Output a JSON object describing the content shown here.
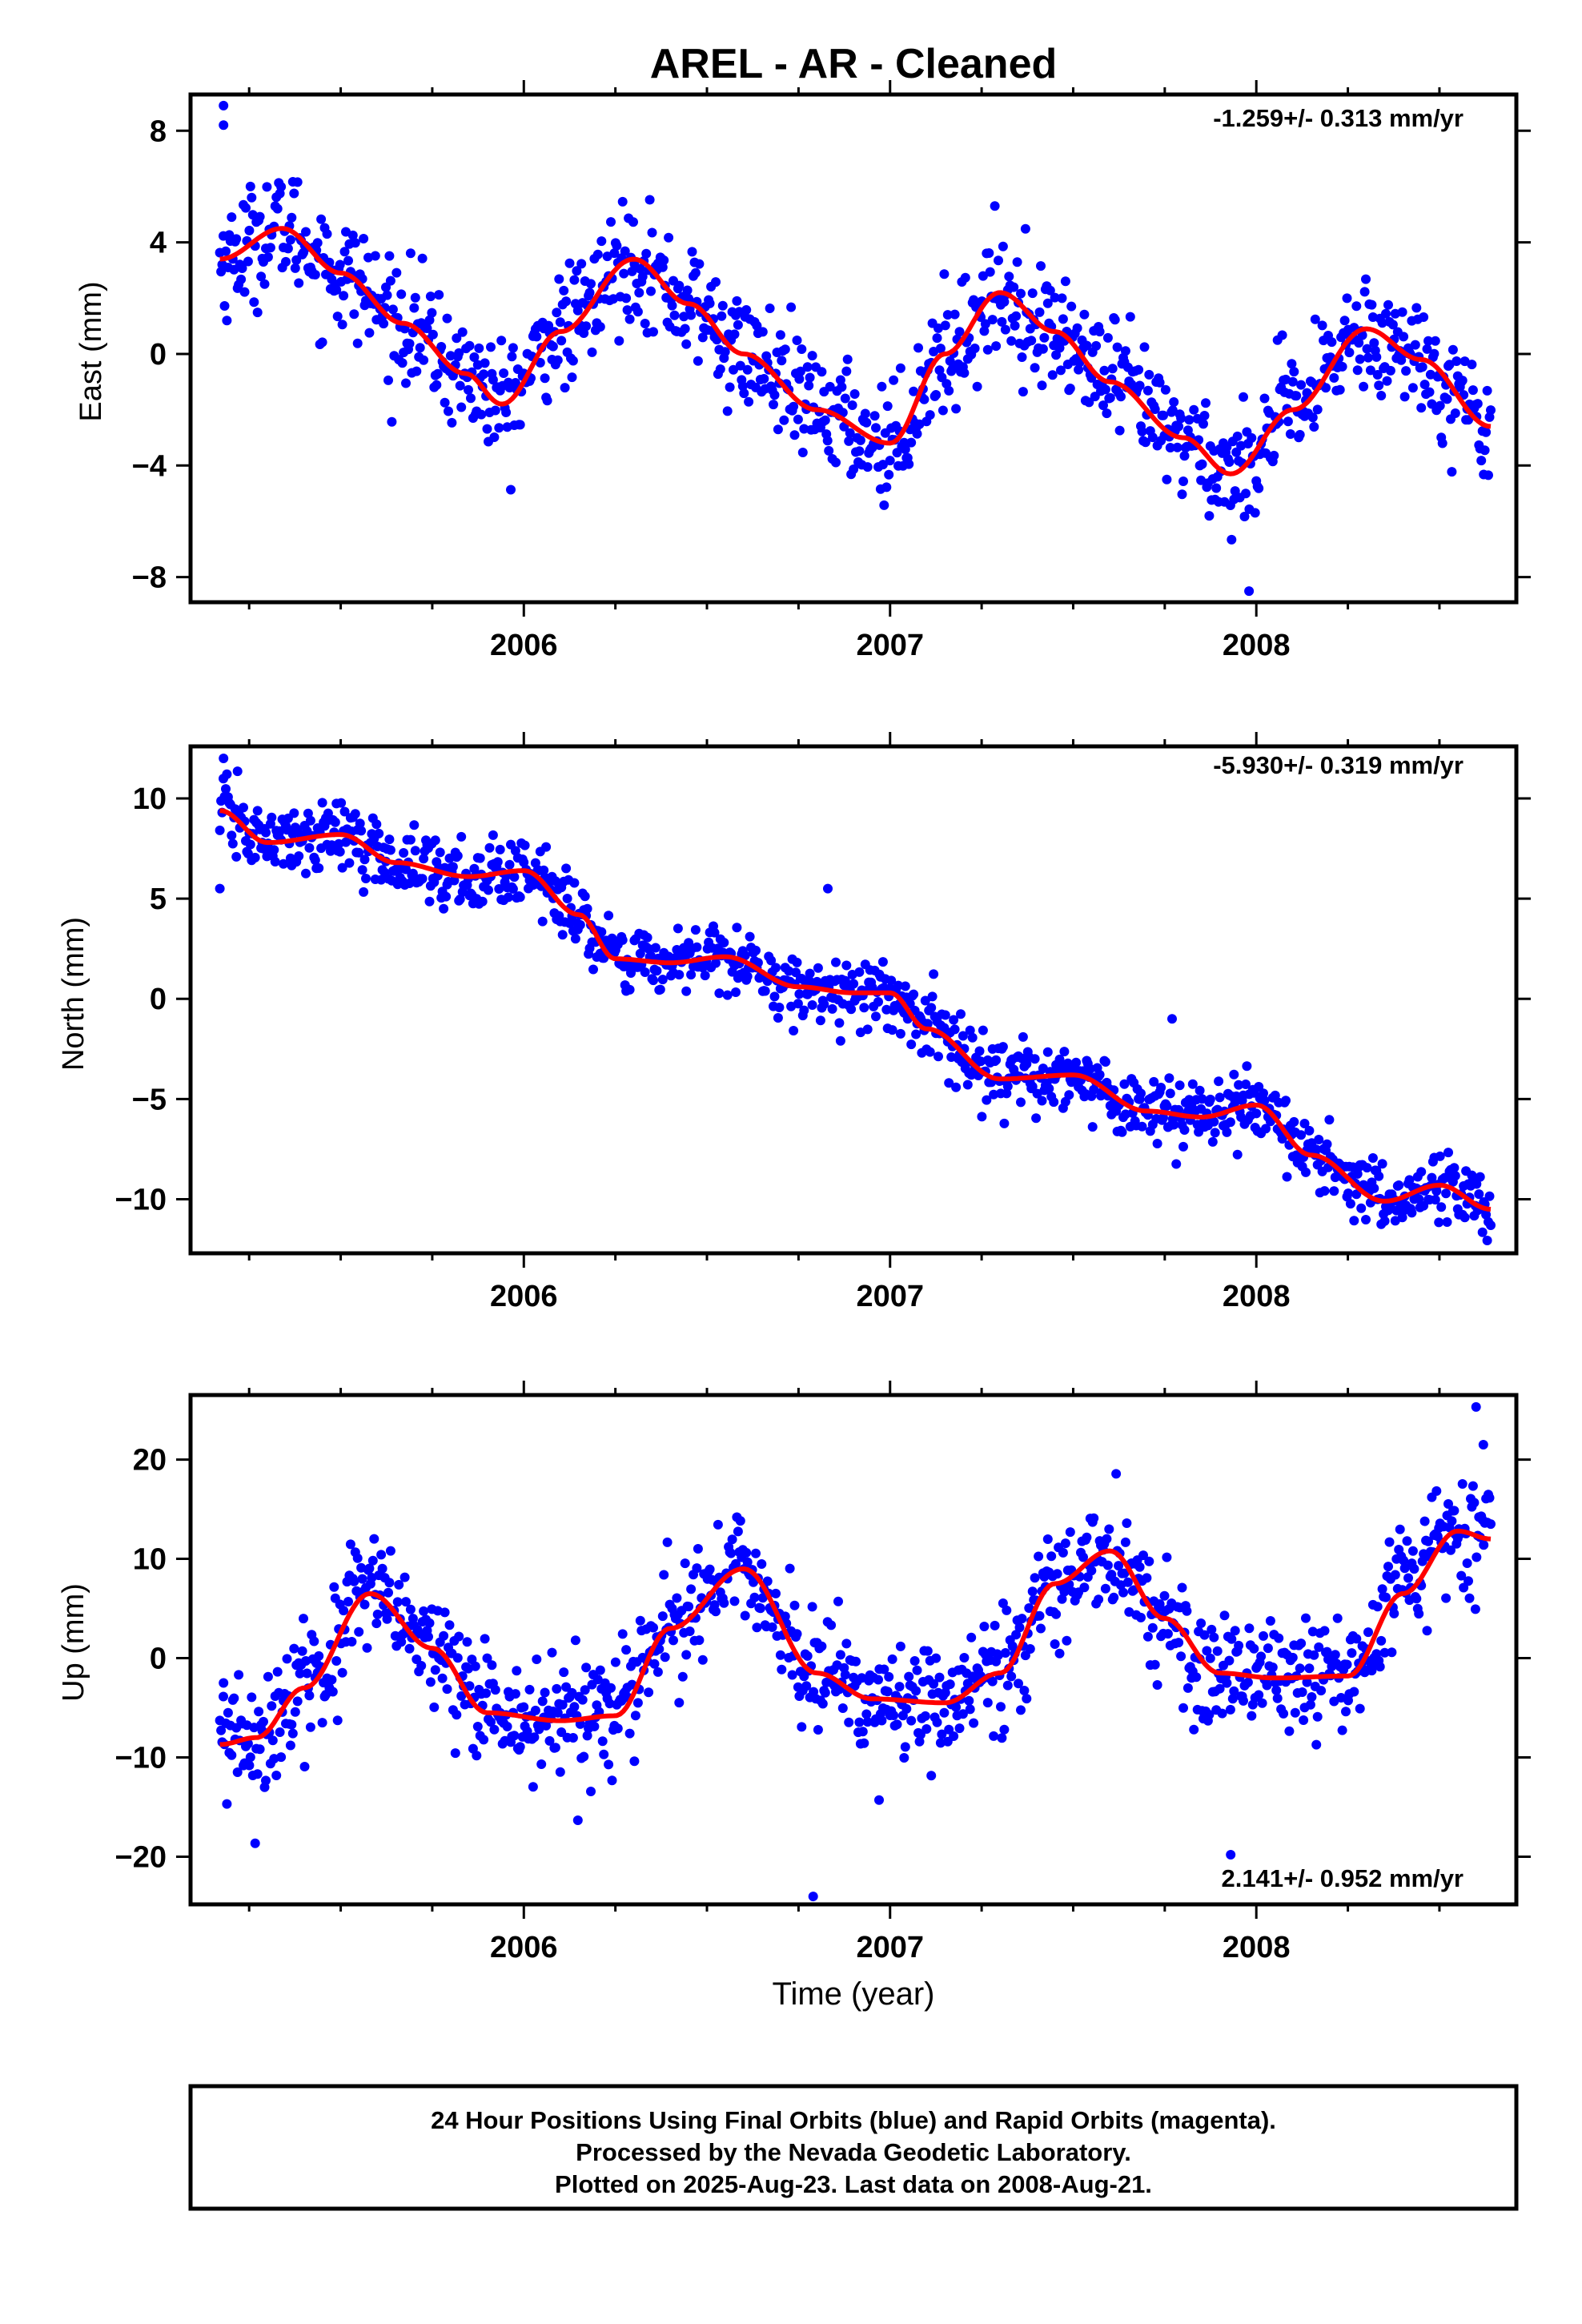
{
  "title": "AREL  - AR - Cleaned",
  "colors": {
    "points": "#0000ff",
    "fit": "#ff0000",
    "frame": "#000000"
  },
  "chart_data": [
    {
      "type": "scatter",
      "ylabel": "East (mm)",
      "xlim": [
        2005.09,
        2008.71
      ],
      "ylim": [
        -8.9,
        9.3
      ],
      "yticks": [
        8,
        4,
        0,
        -4,
        -8
      ],
      "ytick_labels": [
        "8",
        "4",
        "0",
        "−4",
        "−8"
      ],
      "xticks": [
        2006,
        2007,
        2008
      ],
      "xtick_labels": [
        "2006",
        "2007",
        "2008"
      ],
      "rate_text": "-1.259+/- 0.313 mm/yr",
      "rate_position": "top-right",
      "fit_model": {
        "start": 2005.17,
        "end": 2008.64,
        "slope": -1.259,
        "offset": -0.4,
        "annual_amp": 2.6,
        "annual_phase_peak": 2005.31,
        "semi_amp": 0.3
      },
      "fit": {
        "x": [
          2005.17,
          2005.34,
          2005.5,
          2005.67,
          2005.84,
          2005.94,
          2006.1,
          2006.3,
          2006.45,
          2006.6,
          2006.8,
          2007.0,
          2007.15,
          2007.3,
          2007.45,
          2007.6,
          2007.8,
          2007.93,
          2008.1,
          2008.3,
          2008.45,
          2008.64
        ],
        "y": [
          3.4,
          4.5,
          2.9,
          1.1,
          -0.7,
          -1.8,
          0.8,
          3.4,
          1.8,
          0.0,
          -2.0,
          -3.2,
          0.0,
          2.2,
          0.8,
          -1.0,
          -3.0,
          -4.3,
          -2.0,
          0.9,
          -0.2,
          -2.6
        ]
      },
      "points_summary": {
        "count": 1080,
        "x_range": [
          2005.17,
          2008.64
        ],
        "scatter_sd_mm": 1.05,
        "outliers": [
          [
            2005.18,
            8.9
          ],
          [
            2005.18,
            8.2
          ],
          [
            2007.98,
            -8.5
          ]
        ]
      }
    },
    {
      "type": "scatter",
      "ylabel": "North (mm)",
      "xlim": [
        2005.09,
        2008.71
      ],
      "ylim": [
        -12.7,
        12.6
      ],
      "yticks": [
        10,
        5,
        0,
        -5,
        -10
      ],
      "ytick_labels": [
        "10",
        "5",
        "0",
        "−5",
        "−10"
      ],
      "xticks": [
        2006,
        2007,
        2008
      ],
      "xtick_labels": [
        "2006",
        "2007",
        "2008"
      ],
      "rate_text": "-5.930+/- 0.319 mm/yr",
      "rate_position": "top-right",
      "fit": {
        "x": [
          2005.17,
          2005.3,
          2005.5,
          2005.65,
          2005.85,
          2006.0,
          2006.15,
          2006.25,
          2006.4,
          2006.55,
          2006.75,
          2006.9,
          2007.0,
          2007.1,
          2007.3,
          2007.5,
          2007.7,
          2007.85,
          2008.0,
          2008.15,
          2008.35,
          2008.5,
          2008.64
        ],
        "y": [
          9.4,
          7.8,
          8.2,
          6.8,
          6.1,
          6.4,
          4.2,
          2.0,
          1.8,
          2.1,
          0.6,
          0.3,
          0.3,
          -1.5,
          -4.0,
          -3.8,
          -5.6,
          -5.9,
          -5.3,
          -7.8,
          -10.1,
          -9.3,
          -10.5
        ]
      },
      "points_summary": {
        "count": 1080,
        "x_range": [
          2005.17,
          2008.64
        ],
        "scatter_sd_mm": 0.85,
        "outliers": [
          [
            2005.18,
            12.0
          ],
          [
            2005.17,
            5.5
          ],
          [
            2006.83,
            5.5
          ],
          [
            2007.77,
            -1.0
          ]
        ]
      }
    },
    {
      "type": "scatter",
      "ylabel": "Up (mm)",
      "xlabel": "Time (year)",
      "xlim": [
        2005.09,
        2008.71
      ],
      "ylim": [
        -24.8,
        26.5
      ],
      "yticks": [
        20,
        10,
        0,
        -10,
        -20
      ],
      "ytick_labels": [
        "20",
        "10",
        "0",
        "−10",
        "−20"
      ],
      "xticks": [
        2006,
        2007,
        2008
      ],
      "xtick_labels": [
        "2006",
        "2007",
        "2008"
      ],
      "rate_text": "2.141+/- 0.952 mm/yr",
      "rate_position": "bottom-right",
      "fit": {
        "x": [
          2005.17,
          2005.27,
          2005.4,
          2005.58,
          2005.75,
          2005.9,
          2006.1,
          2006.25,
          2006.4,
          2006.6,
          2006.8,
          2006.95,
          2007.15,
          2007.3,
          2007.45,
          2007.6,
          2007.75,
          2007.9,
          2008.05,
          2008.25,
          2008.4,
          2008.55,
          2008.64
        ],
        "y": [
          -8.7,
          -8.0,
          -3.0,
          6.5,
          1.0,
          -5.5,
          -6.3,
          -5.8,
          3.0,
          9.0,
          -1.5,
          -4.1,
          -4.5,
          -1.5,
          7.5,
          10.8,
          4.0,
          -1.5,
          -2.0,
          -1.8,
          6.5,
          12.8,
          12.0
        ]
      },
      "points_summary": {
        "count": 1080,
        "x_range": [
          2005.17,
          2008.64
        ],
        "scatter_sd_mm": 3.0,
        "outliers": [
          [
            2005.18,
            -2.5
          ],
          [
            2006.79,
            -24.0
          ],
          [
            2006.97,
            -14.3
          ],
          [
            2007.93,
            -19.8
          ],
          [
            2008.6,
            25.3
          ],
          [
            2008.62,
            21.5
          ]
        ]
      }
    }
  ],
  "footer": {
    "line1": "24 Hour Positions Using Final Orbits (blue) and Rapid Orbits (magenta).",
    "line2": "Processed by the Nevada Geodetic Laboratory.",
    "line3": "Plotted on 2025-Aug-23. Last data on 2008-Aug-21."
  }
}
